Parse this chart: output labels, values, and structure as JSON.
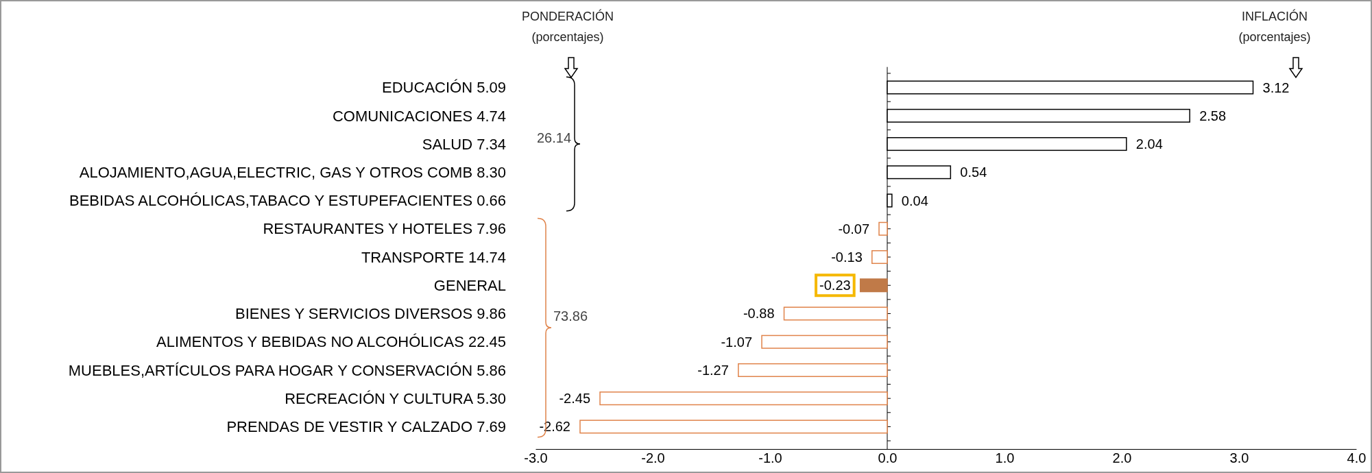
{
  "chart_data": {
    "type": "bar",
    "orientation": "horizontal",
    "categories": [
      "EDUCACIÓN  5.09",
      "COMUNICACIONES  4.74",
      "SALUD  7.34",
      "ALOJAMIENTO,AGUA,ELECTRIC, GAS Y OTROS COMB  8.30",
      "BEBIDAS ALCOHÓLICAS,TABACO Y ESTUPEFACIENTES  0.66",
      "RESTAURANTES Y HOTELES  7.96",
      "TRANSPORTE  14.74",
      "GENERAL",
      "BIENES Y SERVICIOS DIVERSOS  9.86",
      "ALIMENTOS Y BEBIDAS NO ALCOHÓLICAS  22.45",
      "MUEBLES,ARTÍCULOS PARA HOGAR Y CONSERVACIÓN  5.86",
      "RECREACIÓN Y CULTURA  5.30",
      "PRENDAS DE VESTIR Y CALZADO  7.69"
    ],
    "values": [
      3.12,
      2.58,
      2.04,
      0.54,
      0.04,
      -0.07,
      -0.13,
      -0.23,
      -0.88,
      -1.07,
      -1.27,
      -2.45,
      -2.62
    ],
    "colors": [
      "#000000",
      "#000000",
      "#000000",
      "#000000",
      "#000000",
      "#e0834a",
      "#e0834a",
      "#c07a48",
      "#e0834a",
      "#e0834a",
      "#e0834a",
      "#e0834a",
      "#e0834a"
    ],
    "xlim": [
      -3,
      4
    ],
    "xticks": [
      {
        "value": -3,
        "label": "-3.0"
      },
      {
        "value": -2,
        "label": "-2.0"
      },
      {
        "value": -1,
        "label": "-1.0"
      },
      {
        "value": 0,
        "label": "0.0"
      },
      {
        "value": 1,
        "label": "1.0"
      },
      {
        "value": 2,
        "label": "2.0"
      },
      {
        "value": 3,
        "label": "3.0"
      },
      {
        "value": 4,
        "label": "4.0"
      }
    ],
    "data_labels": true,
    "annotations": [
      "PONDERACIÓN",
      "(porcentajes)",
      "INFLACIÓN",
      "(porcentajes)",
      "26.14",
      "73.86"
    ]
  }
}
